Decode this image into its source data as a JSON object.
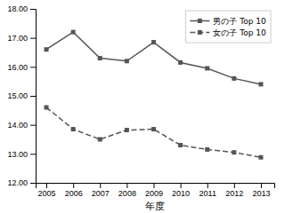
{
  "chart_data": {
    "type": "line",
    "xlabel": "年度",
    "x": [
      2005,
      2006,
      2007,
      2008,
      2009,
      2010,
      2011,
      2012,
      2013
    ],
    "series": [
      {
        "name": "男の子 Top 10",
        "color": "#555555",
        "line_style": "solid",
        "marker": "square",
        "values": [
          16.6,
          17.2,
          16.3,
          16.2,
          16.85,
          16.15,
          15.95,
          15.6,
          15.4
        ]
      },
      {
        "name": "女の子 Top 10",
        "color": "#555555",
        "line_style": "dashed",
        "marker": "square",
        "values": [
          14.6,
          13.85,
          13.5,
          13.82,
          13.85,
          13.3,
          13.15,
          13.05,
          12.88
        ]
      }
    ],
    "xlim": [
      2004.6,
      2013.5
    ],
    "xticks": [
      2005,
      2006,
      2007,
      2008,
      2009,
      2010,
      2011,
      2012,
      2013
    ],
    "ylim": [
      12.0,
      18.0
    ],
    "yticks": [
      {
        "value": 12.0,
        "label": "12.00"
      },
      {
        "value": 13.0,
        "label": "13.00"
      },
      {
        "value": 14.0,
        "label": "14.00"
      },
      {
        "value": 15.0,
        "label": "15.00"
      },
      {
        "value": 16.0,
        "label": "16.00"
      },
      {
        "value": 17.0,
        "label": "17.00"
      },
      {
        "value": 18.0,
        "label": "18.00"
      }
    ],
    "grid": false,
    "legend": "upper right"
  }
}
